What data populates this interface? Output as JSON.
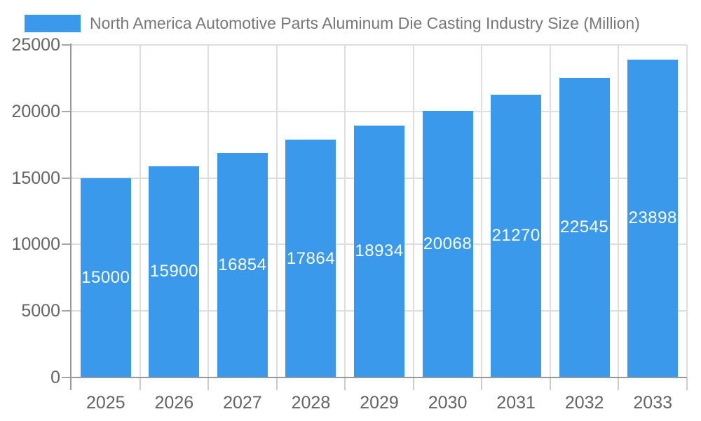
{
  "chart_data": {
    "type": "bar",
    "title": "North America Automotive Parts Aluminum Die Casting Industry Size (Million)",
    "legend_label": "North America Automotive Parts Aluminum Die Casting Industry Size (Million)",
    "legend_position": "top-left",
    "categories": [
      "2025",
      "2026",
      "2027",
      "2028",
      "2029",
      "2030",
      "2031",
      "2032",
      "2033"
    ],
    "series": [
      {
        "name": "North America Automotive Parts Aluminum Die Casting Industry Size (Million)",
        "values": [
          15000,
          15900,
          16854,
          17864,
          18934,
          20068,
          21270,
          22545,
          23898
        ]
      }
    ],
    "value_labels_shown": true,
    "xlabel": "",
    "ylabel": "",
    "ylim": [
      0,
      25000
    ],
    "yticks": [
      0,
      5000,
      10000,
      15000,
      20000,
      25000
    ],
    "grid": true,
    "colors": {
      "bar": "#3B99EC",
      "grid_line": "#DEDEDE",
      "axis_line": "#999999",
      "y_tick": "#A6A6A6",
      "x_tick": "#CCCCCC",
      "axis_label": "#646464",
      "legend_text": "#777777",
      "value_label": "#FFFFFF",
      "background": "#FFFFFF"
    }
  }
}
